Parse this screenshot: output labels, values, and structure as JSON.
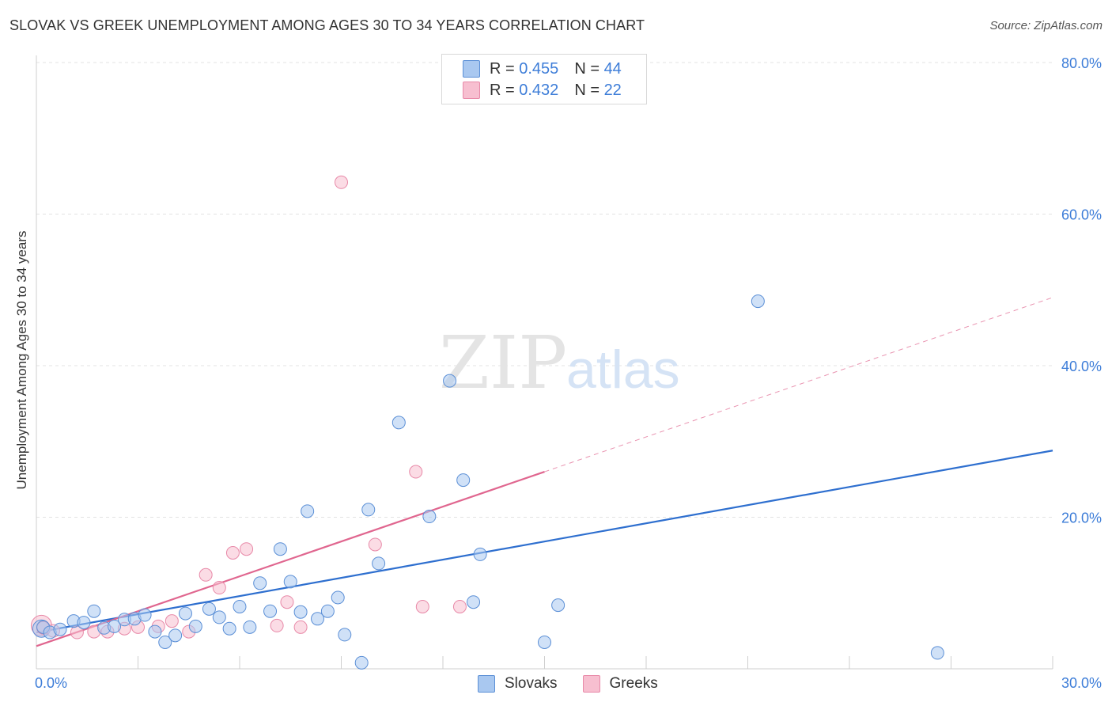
{
  "title": "SLOVAK VS GREEK UNEMPLOYMENT AMONG AGES 30 TO 34 YEARS CORRELATION CHART",
  "source": "Source: ZipAtlas.com",
  "watermark": {
    "zip": "ZIP",
    "atlas": "atlas"
  },
  "legend": {
    "rows": [
      {
        "r_label": "R =",
        "r_value": "0.455",
        "n_label": "N =",
        "n_value": "44"
      },
      {
        "r_label": "R =",
        "r_value": "0.432",
        "n_label": "N =",
        "n_value": "22"
      }
    ]
  },
  "bottom_legend": {
    "slovaks": "Slovaks",
    "greeks": "Greeks"
  },
  "colors": {
    "slovaks_fill": "#a9c8f0",
    "slovaks_stroke": "#5b8fd6",
    "slovaks_line": "#2e6fcf",
    "greeks_fill": "#f7bfd0",
    "greeks_stroke": "#e889a8",
    "greeks_line": "#e0668f",
    "tick_label": "#3d7dd8",
    "grid": "#e3e3e3"
  },
  "chart_data": {
    "type": "scatter",
    "title": "SLOVAK VS GREEK UNEMPLOYMENT AMONG AGES 30 TO 34 YEARS CORRELATION CHART",
    "xlabel": "",
    "ylabel": "Unemployment Among Ages 30 to 34 years",
    "xlim": [
      0,
      30
    ],
    "ylim": [
      0,
      82
    ],
    "x_tick_labels": [
      "0.0%",
      "30.0%"
    ],
    "y_ticks": [
      20,
      40,
      60,
      80
    ],
    "y_tick_labels": [
      "20.0%",
      "40.0%",
      "60.0%",
      "80.0%"
    ],
    "grid": "horizontal dashed",
    "legend_placement": "top-center",
    "series": [
      {
        "name": "Slovaks",
        "points": [
          [
            0.2,
            5.5
          ],
          [
            0.4,
            4.8
          ],
          [
            0.7,
            5.2
          ],
          [
            1.1,
            6.3
          ],
          [
            1.4,
            6.1
          ],
          [
            1.7,
            7.6
          ],
          [
            2.0,
            5.4
          ],
          [
            2.3,
            5.6
          ],
          [
            2.6,
            6.5
          ],
          [
            2.9,
            6.6
          ],
          [
            3.2,
            7.1
          ],
          [
            3.5,
            4.9
          ],
          [
            3.8,
            3.5
          ],
          [
            4.1,
            4.4
          ],
          [
            4.4,
            7.3
          ],
          [
            4.7,
            5.6
          ],
          [
            5.1,
            7.9
          ],
          [
            5.4,
            6.8
          ],
          [
            5.7,
            5.3
          ],
          [
            6.0,
            8.2
          ],
          [
            6.3,
            5.5
          ],
          [
            6.6,
            11.3
          ],
          [
            6.9,
            7.6
          ],
          [
            7.2,
            15.8
          ],
          [
            7.5,
            11.5
          ],
          [
            7.8,
            7.5
          ],
          [
            8.0,
            20.8
          ],
          [
            8.3,
            6.6
          ],
          [
            8.6,
            7.6
          ],
          [
            8.9,
            9.4
          ],
          [
            9.1,
            4.5
          ],
          [
            9.6,
            0.8
          ],
          [
            9.8,
            21.0
          ],
          [
            10.1,
            13.9
          ],
          [
            10.7,
            32.5
          ],
          [
            11.6,
            20.1
          ],
          [
            12.2,
            38.0
          ],
          [
            12.6,
            24.9
          ],
          [
            12.9,
            8.8
          ],
          [
            13.1,
            15.1
          ],
          [
            15.0,
            3.5
          ],
          [
            15.4,
            8.4
          ],
          [
            21.3,
            48.5
          ],
          [
            26.6,
            2.1
          ]
        ],
        "trend": {
          "x": [
            0,
            30
          ],
          "y": [
            4.8,
            28.8
          ]
        }
      },
      {
        "name": "Greeks",
        "points": [
          [
            0.2,
            5.4
          ],
          [
            0.5,
            5.0
          ],
          [
            1.2,
            4.8
          ],
          [
            1.7,
            4.9
          ],
          [
            2.1,
            4.9
          ],
          [
            2.6,
            5.3
          ],
          [
            3.0,
            5.5
          ],
          [
            3.6,
            5.6
          ],
          [
            4.0,
            6.3
          ],
          [
            4.5,
            4.9
          ],
          [
            5.0,
            12.4
          ],
          [
            5.4,
            10.7
          ],
          [
            5.8,
            15.3
          ],
          [
            6.2,
            15.8
          ],
          [
            7.1,
            5.7
          ],
          [
            7.4,
            8.8
          ],
          [
            7.8,
            5.5
          ],
          [
            9.0,
            64.2
          ],
          [
            10.0,
            16.4
          ],
          [
            11.2,
            26.0
          ],
          [
            11.4,
            8.2
          ],
          [
            12.5,
            8.2
          ]
        ],
        "trend": {
          "x": [
            0,
            15
          ],
          "y": [
            3.0,
            26.0
          ]
        },
        "trend_extension": {
          "x": [
            15,
            30
          ],
          "y": [
            26.0,
            49.0
          ]
        }
      }
    ]
  }
}
